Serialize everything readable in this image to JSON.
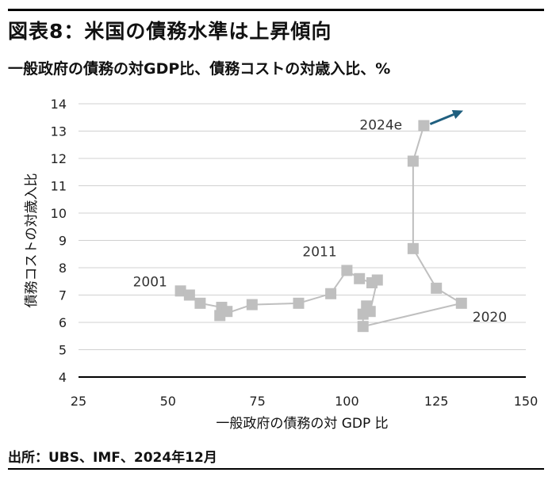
{
  "header": {
    "title": "図表8：米国の債務水準は上昇傾向",
    "subtitle": "一般政府の債務の対GDP比、債務コストの対歳入比、%"
  },
  "footer": {
    "source": "出所：UBS、IMF、2024年12月"
  },
  "chart_data": {
    "type": "scatter",
    "xlabel": "一般政府の債務の対 GDP 比",
    "ylabel": "債務コストの対歳入比",
    "xlim": [
      25,
      150
    ],
    "ylim": [
      4,
      14
    ],
    "xticks": [
      25,
      50,
      75,
      100,
      125,
      150
    ],
    "yticks": [
      4,
      5,
      6,
      7,
      8,
      9,
      10,
      11,
      12,
      13,
      14
    ],
    "grid": "horizontal",
    "connected": true,
    "colors": {
      "points": "#bfbfbf",
      "line": "#bfbfbf",
      "arrow": "#1f5f7f"
    },
    "x": [
      53.5,
      56,
      59,
      65,
      66.5,
      64.5,
      73.5,
      86.5,
      95.5,
      100,
      103.5,
      107,
      108.5,
      106.5,
      105.5,
      104.5,
      104.5,
      132,
      125,
      118.5,
      118.5,
      121.5
    ],
    "y": [
      7.15,
      7.0,
      6.7,
      6.55,
      6.4,
      6.25,
      6.65,
      6.7,
      7.05,
      7.9,
      7.6,
      7.45,
      7.55,
      6.4,
      6.6,
      6.3,
      5.85,
      6.7,
      7.25,
      8.7,
      11.9,
      13.2
    ],
    "annotations": [
      {
        "text": "2001",
        "x": 53.5,
        "y": 7.15
      },
      {
        "text": "2011",
        "x": 100,
        "y": 7.9
      },
      {
        "text": "2020",
        "x": 132,
        "y": 6.7
      },
      {
        "text": "2024e",
        "x": 121.5,
        "y": 13.2
      }
    ],
    "arrow": {
      "from": [
        121.5,
        13.2
      ],
      "to": [
        132.5,
        13.75
      ]
    }
  }
}
